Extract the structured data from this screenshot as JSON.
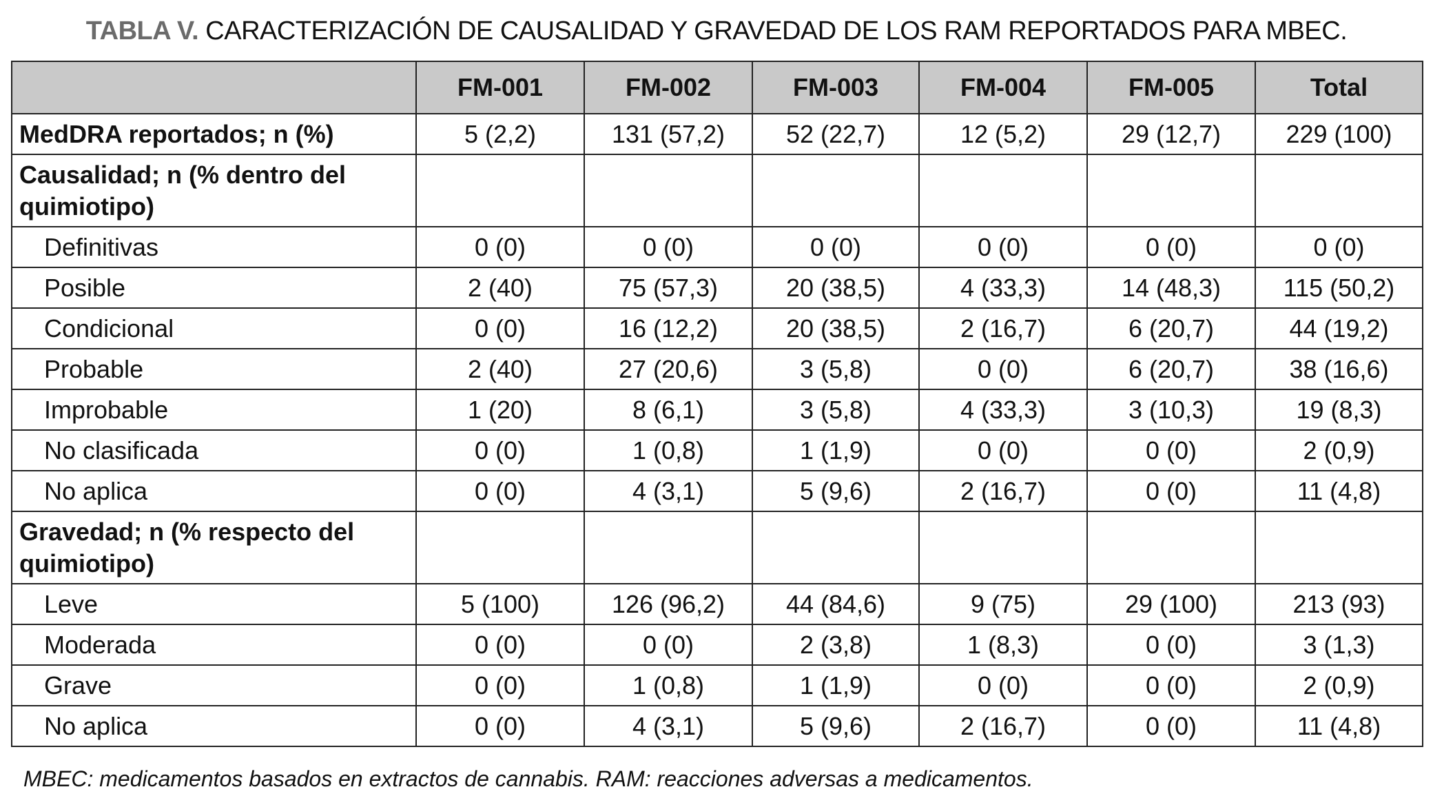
{
  "title": {
    "lead": "TABLA V.",
    "text": " CARACTERIZACIÓN DE CAUSALIDAD Y GRAVEDAD DE LOS RAM REPORTADOS PARA MBEC."
  },
  "columns": [
    "",
    "FM-001",
    "FM-002",
    "FM-003",
    "FM-004",
    "FM-005",
    "Total"
  ],
  "rows": [
    {
      "type": "bold",
      "label": "MedDRA reportados; n (%)",
      "values": [
        "5 (2,2)",
        "131 (57,2)",
        "52 (22,7)",
        "12 (5,2)",
        "29 (12,7)",
        "229 (100)"
      ]
    },
    {
      "type": "section",
      "label": "Causalidad; n (% dentro del quimiotipo)",
      "values": [
        "",
        "",
        "",
        "",
        "",
        ""
      ]
    },
    {
      "type": "sub",
      "label": "Definitivas",
      "values": [
        "0 (0)",
        "0 (0)",
        "0 (0)",
        "0 (0)",
        "0 (0)",
        "0 (0)"
      ]
    },
    {
      "type": "sub",
      "label": "Posible",
      "values": [
        "2 (40)",
        "75 (57,3)",
        "20 (38,5)",
        "4 (33,3)",
        "14 (48,3)",
        "115 (50,2)"
      ]
    },
    {
      "type": "sub",
      "label": "Condicional",
      "values": [
        "0 (0)",
        "16 (12,2)",
        "20 (38,5)",
        "2 (16,7)",
        "6 (20,7)",
        "44 (19,2)"
      ]
    },
    {
      "type": "sub",
      "label": "Probable",
      "values": [
        "2 (40)",
        "27 (20,6)",
        "3 (5,8)",
        "0 (0)",
        "6 (20,7)",
        "38 (16,6)"
      ]
    },
    {
      "type": "sub",
      "label": "Improbable",
      "values": [
        "1 (20)",
        "8 (6,1)",
        "3 (5,8)",
        "4 (33,3)",
        "3 (10,3)",
        "19 (8,3)"
      ]
    },
    {
      "type": "sub",
      "label": "No clasificada",
      "values": [
        "0 (0)",
        "1 (0,8)",
        "1 (1,9)",
        "0 (0)",
        "0 (0)",
        "2 (0,9)"
      ]
    },
    {
      "type": "sub",
      "label": "No aplica",
      "values": [
        "0 (0)",
        "4 (3,1)",
        "5 (9,6)",
        "2 (16,7)",
        "0 (0)",
        "11 (4,8)"
      ]
    },
    {
      "type": "section",
      "label": "Gravedad; n (% respecto del quimiotipo)",
      "values": [
        "",
        "",
        "",
        "",
        "",
        ""
      ]
    },
    {
      "type": "sub",
      "label": "Leve",
      "values": [
        "5 (100)",
        "126 (96,2)",
        "44 (84,6)",
        "9 (75)",
        "29 (100)",
        "213 (93)"
      ]
    },
    {
      "type": "sub",
      "label": "Moderada",
      "values": [
        "0 (0)",
        "0 (0)",
        "2 (3,8)",
        "1 (8,3)",
        "0 (0)",
        "3 (1,3)"
      ]
    },
    {
      "type": "sub",
      "label": "Grave",
      "values": [
        "0 (0)",
        "1 (0,8)",
        "1 (1,9)",
        "0 (0)",
        "0 (0)",
        "2 (0,9)"
      ]
    },
    {
      "type": "sub",
      "label": "No aplica",
      "values": [
        "0 (0)",
        "4 (3,1)",
        "5 (9,6)",
        "2 (16,7)",
        "0 (0)",
        "11 (4,8)"
      ]
    }
  ],
  "footnote": "MBEC: medicamentos basados en extractos de cannabis. RAM: reacciones adversas a medicamentos.",
  "colors": {
    "header_bg": "#c9c9c9",
    "title_lead": "#6b6b6b"
  }
}
